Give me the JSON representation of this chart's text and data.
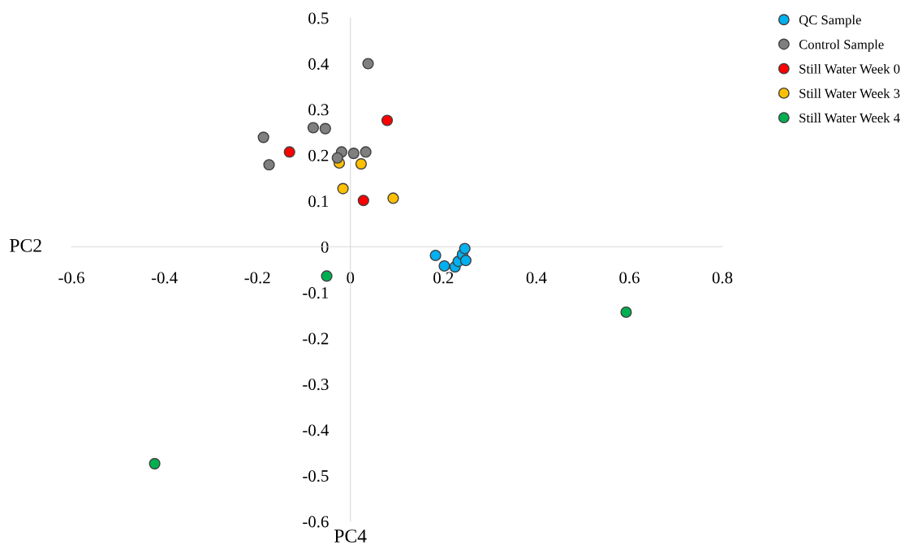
{
  "chart_data": {
    "type": "scatter",
    "xlabel": "PC4",
    "ylabel": "PC2",
    "xlim": [
      -0.6,
      0.8
    ],
    "xticks": [
      -0.6,
      -0.4,
      -0.2,
      0,
      0.2,
      0.4,
      0.6,
      0.8
    ],
    "ylim": [
      -0.6,
      0.5
    ],
    "yticks": [
      -0.6,
      -0.5,
      -0.4,
      -0.3,
      -0.2,
      -0.1,
      0,
      0.1,
      0.2,
      0.3,
      0.4,
      0.5
    ],
    "grid": false,
    "legend": "top right",
    "marker": "circle",
    "series": [
      {
        "name": "QC Sample",
        "color": "#00b0f0",
        "x": [
          0.183,
          0.202,
          0.225,
          0.232,
          0.241,
          0.246,
          0.248
        ],
        "values": [
          -0.019,
          -0.042,
          -0.044,
          -0.032,
          -0.017,
          -0.004,
          -0.03
        ]
      },
      {
        "name": "Control Sample",
        "color": "#7f7f7f",
        "x": [
          0.038,
          -0.187,
          -0.175,
          -0.08,
          -0.054,
          -0.019,
          0.007,
          0.033,
          -0.028
        ],
        "values": [
          0.4,
          0.239,
          0.179,
          0.26,
          0.258,
          0.207,
          0.204,
          0.207,
          0.194
        ]
      },
      {
        "name": "Still Water Week 0",
        "color": "#ff0000",
        "x": [
          0.079,
          -0.131,
          0.028
        ],
        "values": [
          0.276,
          0.207,
          0.101
        ]
      },
      {
        "name": "Still Water Week 3",
        "color": "#ffc000",
        "x": [
          0.023,
          -0.016,
          0.092,
          -0.024
        ],
        "values": [
          0.181,
          0.127,
          0.106,
          0.183
        ]
      },
      {
        "name": "Still Water Week 4",
        "color": "#00b050",
        "x": [
          -0.051,
          0.593,
          -0.421
        ],
        "values": [
          -0.064,
          -0.143,
          -0.474
        ]
      }
    ]
  }
}
